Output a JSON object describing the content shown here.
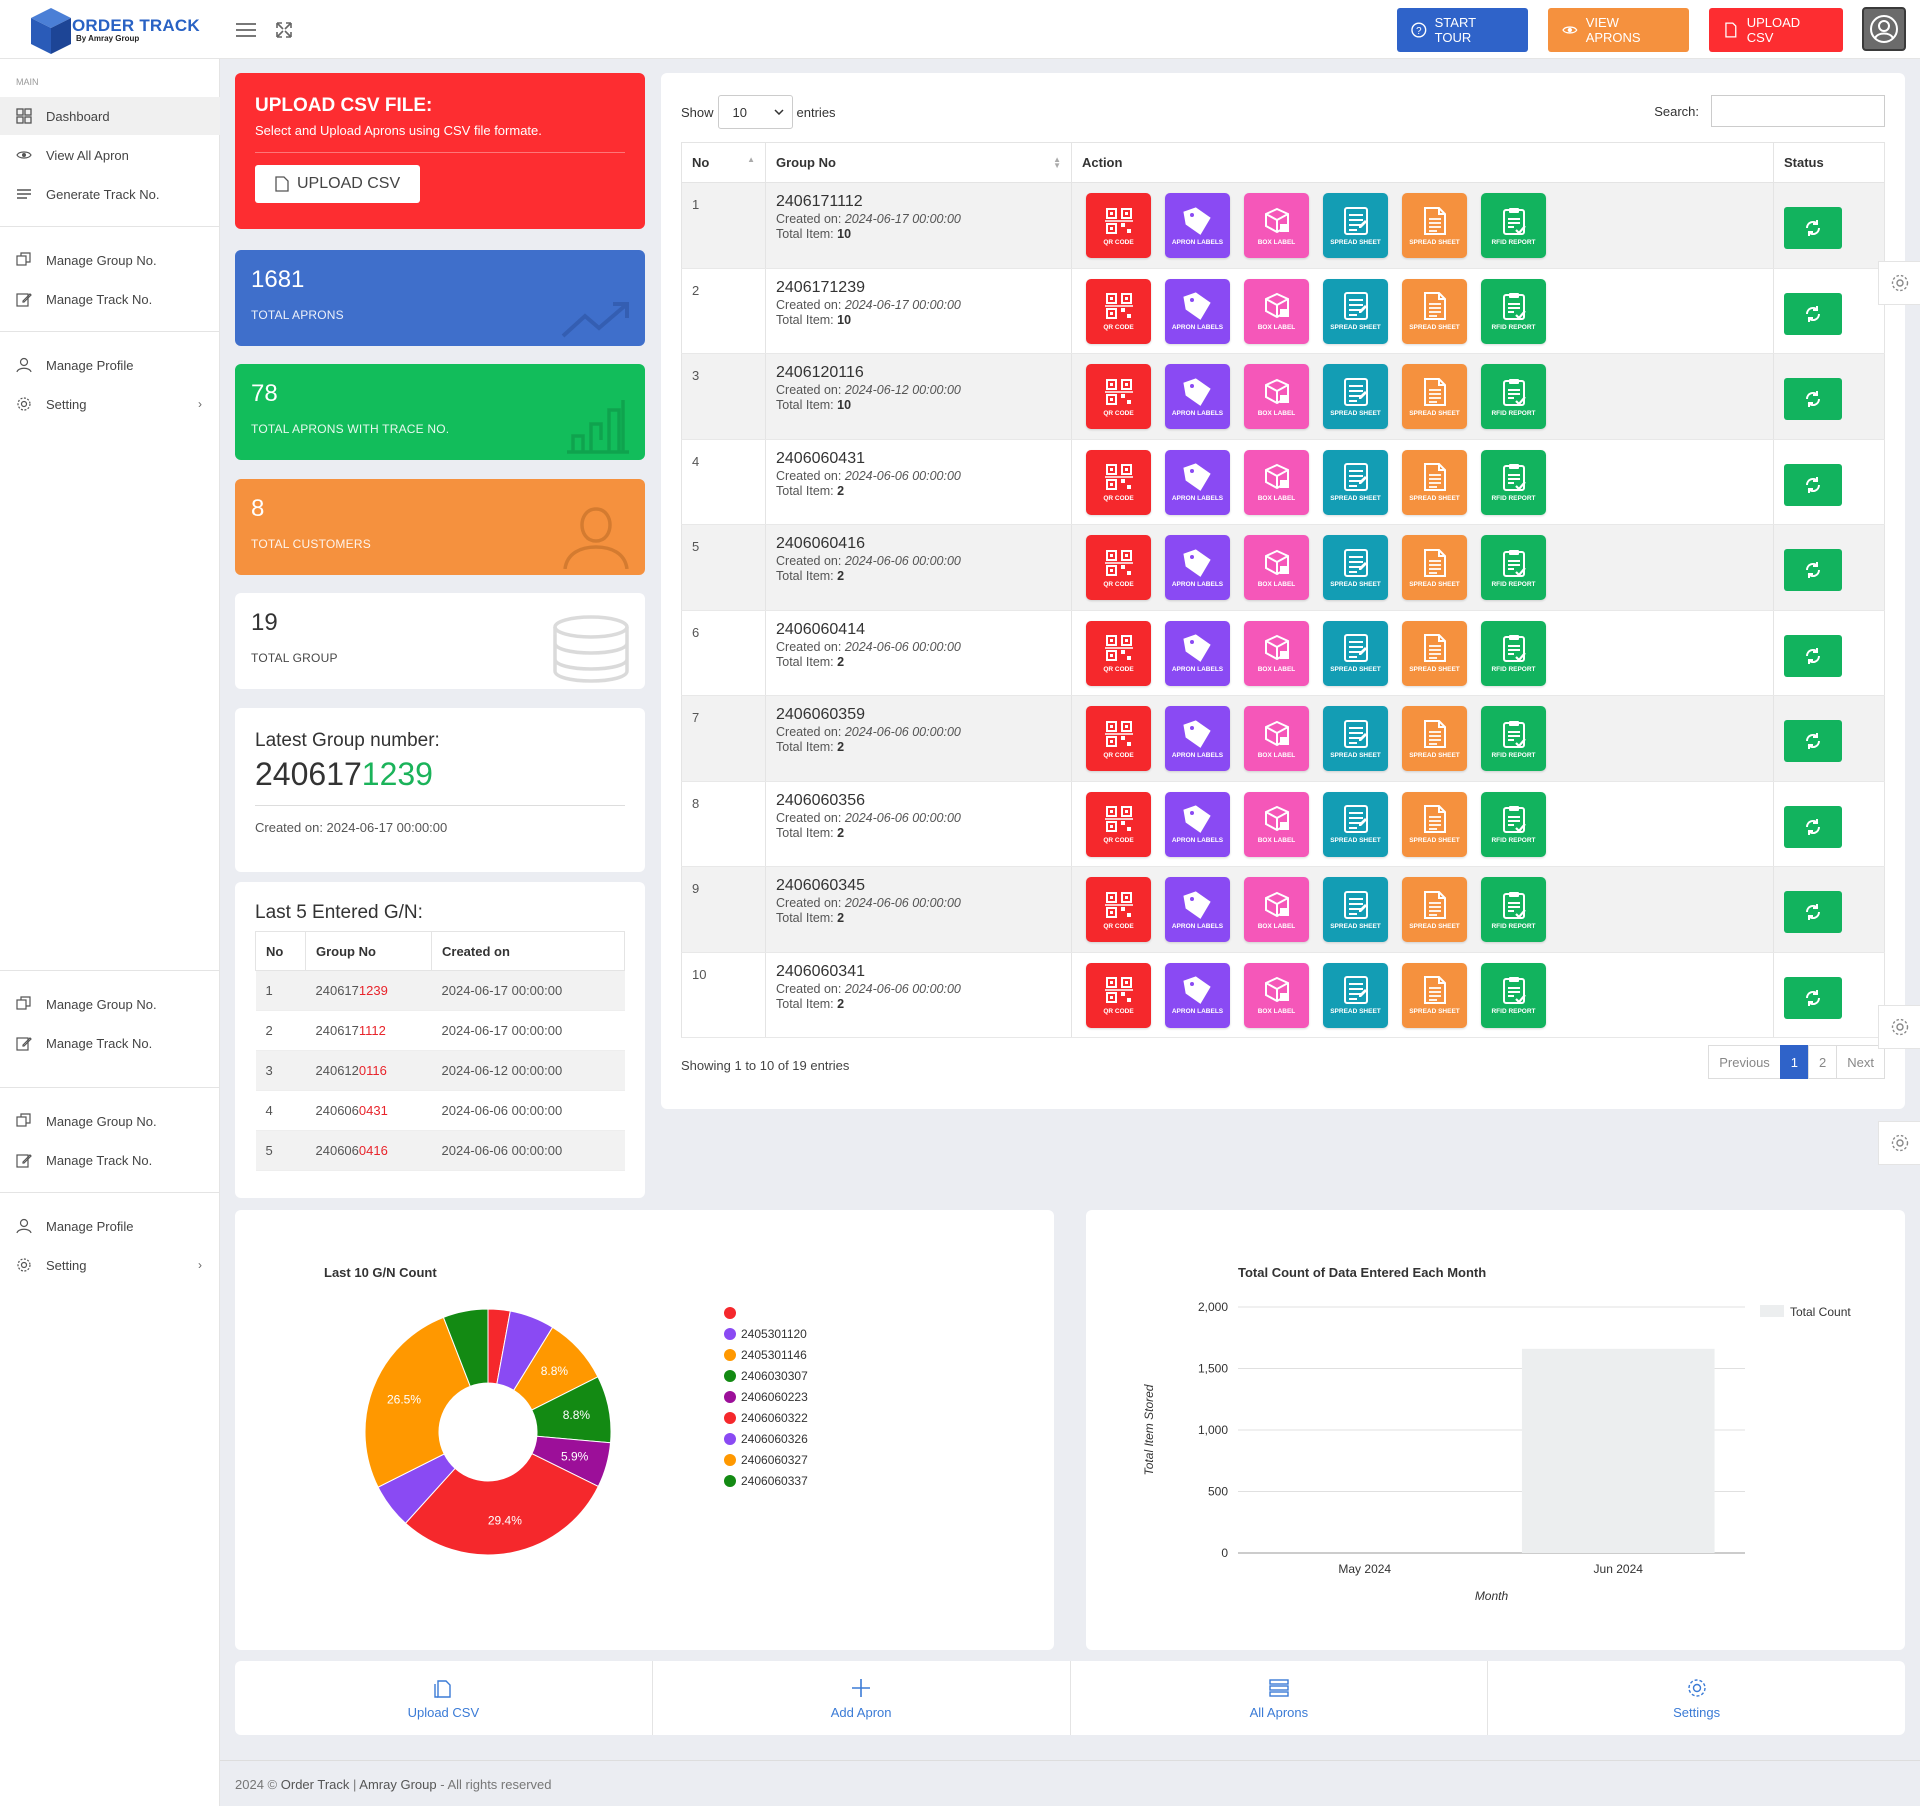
{
  "brand": {
    "title": "ORDER TRACK",
    "subtitle": "By Amray Group",
    "color": "#2962c4"
  },
  "header": {
    "buttons": [
      {
        "label": "START TOUR",
        "icon": "question-icon",
        "color": "#2f63c9"
      },
      {
        "label": "VIEW APRONS",
        "icon": "eye-icon",
        "color": "#f5913e"
      },
      {
        "label": "UPLOAD CSV",
        "icon": "file-icon",
        "color": "#fd2d31"
      }
    ]
  },
  "sidebar": {
    "section": "MAIN",
    "group1": [
      {
        "label": "Dashboard",
        "icon": "grid-icon",
        "active": true
      },
      {
        "label": "View All Apron",
        "icon": "eye-icon"
      },
      {
        "label": "Generate Track No.",
        "icon": "menu-icon"
      }
    ],
    "group2": [
      {
        "label": "Manage Group No.",
        "icon": "copy-icon"
      },
      {
        "label": "Manage Track No.",
        "icon": "edit-icon"
      }
    ],
    "group3": [
      {
        "label": "Manage Profile",
        "icon": "user-icon"
      },
      {
        "label": "Setting",
        "icon": "gear-icon",
        "chevron": "›"
      }
    ],
    "group4": [
      {
        "label": "Manage Group No.",
        "icon": "copy-icon"
      },
      {
        "label": "Manage Track No.",
        "icon": "edit-icon"
      }
    ],
    "group5": [
      {
        "label": "Manage Group No.",
        "icon": "copy-icon"
      },
      {
        "label": "Manage Track No.",
        "icon": "edit-icon"
      }
    ],
    "group6": [
      {
        "label": "Manage Profile",
        "icon": "user-icon"
      },
      {
        "label": "Setting",
        "icon": "gear-icon",
        "chevron": "›"
      }
    ]
  },
  "upload_card": {
    "title": "UPLOAD CSV FILE:",
    "desc": "Select and Upload Aprons using CSV file formate.",
    "button": "UPLOAD CSV"
  },
  "stats": [
    {
      "value": "1681",
      "label": "TOTAL APRONS",
      "color": "#3f6fcb",
      "icon": "trend-icon"
    },
    {
      "value": "78",
      "label": "TOTAL APRONS WITH TRACE NO.",
      "color": "#12bd5b",
      "icon": "bar-chart-icon"
    },
    {
      "value": "8",
      "label": "TOTAL CUSTOMERS",
      "color": "#f5913e",
      "icon": "user-icon"
    },
    {
      "value": "19",
      "label": "TOTAL GROUP",
      "color": "#ffffff",
      "icon": "database-icon"
    }
  ],
  "latest": {
    "title": "Latest Group number:",
    "prefix": "240617",
    "suffix": "1239",
    "created": "Created on: 2024-06-17 00:00:00"
  },
  "last5": {
    "title": "Last 5 Entered G/N:",
    "headers": [
      "No",
      "Group No",
      "Created on"
    ],
    "rows": [
      {
        "no": "1",
        "pre": "240617",
        "hl": "1239",
        "created": "2024-06-17 00:00:00"
      },
      {
        "no": "2",
        "pre": "240617",
        "hl": "1112",
        "created": "2024-06-17 00:00:00"
      },
      {
        "no": "3",
        "pre": "240612",
        "hl": "0116",
        "created": "2024-06-12 00:00:00"
      },
      {
        "no": "4",
        "pre": "240606",
        "hl": "0431",
        "created": "2024-06-06 00:00:00"
      },
      {
        "no": "5",
        "pre": "240606",
        "hl": "0416",
        "created": "2024-06-06 00:00:00"
      }
    ]
  },
  "table": {
    "show_label": "Show",
    "entries_value": "10",
    "entries_label": "entries",
    "search_label": "Search:",
    "headers": [
      "No",
      "Group No",
      "Action",
      "Status"
    ],
    "created_label": "Created on:",
    "total_label": "Total Item:",
    "actions": [
      {
        "label": "QR CODE",
        "color": "#f5282c",
        "icon": "qr-icon"
      },
      {
        "label": "APRON LABELS",
        "color": "#8a4af3",
        "icon": "tag-icon"
      },
      {
        "label": "BOX LABEL",
        "color": "#f557b9",
        "icon": "box-icon"
      },
      {
        "label": "SPREAD SHEET",
        "color": "#139db4",
        "icon": "sheet-icon"
      },
      {
        "label": "SPREAD SHEET",
        "color": "#f5913e",
        "icon": "doc-icon"
      },
      {
        "label": "RFID REPORT",
        "color": "#12b35e",
        "icon": "clipboard-icon"
      }
    ],
    "rows": [
      {
        "no": "1",
        "group": "2406171112",
        "created": "2024-06-17 00:00:00",
        "total": "10"
      },
      {
        "no": "2",
        "group": "2406171239",
        "created": "2024-06-17 00:00:00",
        "total": "10"
      },
      {
        "no": "3",
        "group": "2406120116",
        "created": "2024-06-12 00:00:00",
        "total": "10"
      },
      {
        "no": "4",
        "group": "2406060431",
        "created": "2024-06-06 00:00:00",
        "total": "2"
      },
      {
        "no": "5",
        "group": "2406060416",
        "created": "2024-06-06 00:00:00",
        "total": "2"
      },
      {
        "no": "6",
        "group": "2406060414",
        "created": "2024-06-06 00:00:00",
        "total": "2"
      },
      {
        "no": "7",
        "group": "2406060359",
        "created": "2024-06-06 00:00:00",
        "total": "2"
      },
      {
        "no": "8",
        "group": "2406060356",
        "created": "2024-06-06 00:00:00",
        "total": "2"
      },
      {
        "no": "9",
        "group": "2406060345",
        "created": "2024-06-06 00:00:00",
        "total": "2"
      },
      {
        "no": "10",
        "group": "2406060341",
        "created": "2024-06-06 00:00:00",
        "total": "2"
      }
    ],
    "showing": "Showing 1 to 10 of 19 entries",
    "pager": [
      "Previous",
      "1",
      "2",
      "Next"
    ]
  },
  "chart_data": [
    {
      "type": "pie",
      "title": "Last 10 G/N Count",
      "donut": true,
      "legend_position": "right",
      "series": [
        {
          "name": "",
          "value": 2.9,
          "color": "#f5282c"
        },
        {
          "name": "2405301120",
          "value": 5.9,
          "color": "#8a4af3"
        },
        {
          "name": "2405301146",
          "value": 8.8,
          "color": "#ff9800"
        },
        {
          "name": "2406030307",
          "value": 8.8,
          "color": "#138a13"
        },
        {
          "name": "2406060223",
          "value": 5.9,
          "color": "#9c0f99"
        },
        {
          "name": "2406060322",
          "value": 29.4,
          "color": "#f5282c"
        },
        {
          "name": "2406060326",
          "value": 5.9,
          "color": "#8a4af3"
        },
        {
          "name": "2406060327",
          "value": 26.5,
          "color": "#ff9800"
        },
        {
          "name": "2406060337",
          "value": 5.9,
          "color": "#138a13"
        }
      ],
      "data_labels": [
        "8.8%",
        "8.8%",
        "5.9%",
        "29.4%",
        "26.5%"
      ]
    },
    {
      "type": "bar",
      "title": "Total Count of Data Entered Each Month",
      "categories": [
        "May 2024",
        "Jun 2024"
      ],
      "series": [
        {
          "name": "Total Count",
          "values": [
            0,
            1660
          ],
          "color": "#eceeef"
        }
      ],
      "xlabel": "Month",
      "ylabel": "Total Item Stored",
      "ylim": [
        0,
        2000
      ],
      "yticks": [
        "2,000",
        "1,500",
        "1,000",
        "500",
        "0"
      ],
      "grid": true,
      "legend_position": "top-right"
    }
  ],
  "quick_links": [
    {
      "label": "Upload CSV",
      "icon": "copy-icon"
    },
    {
      "label": "Add Apron",
      "icon": "plus-icon"
    },
    {
      "label": "All Aprons",
      "icon": "list-icon"
    },
    {
      "label": "Settings",
      "icon": "gear-icon"
    }
  ],
  "footer": {
    "year": "2024 ©",
    "app": "Order Track",
    "sep": "|",
    "org": "Amray Group",
    "rights": "- All rights reserved"
  }
}
